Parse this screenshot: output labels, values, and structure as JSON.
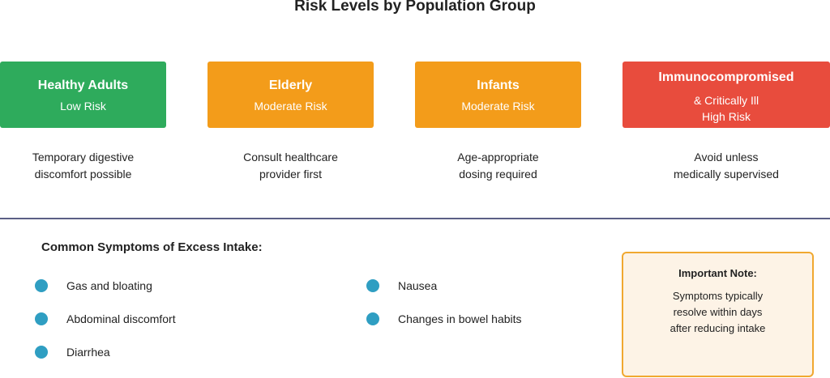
{
  "title": "Risk Levels by Population Group",
  "colors": {
    "low": "#2eab5c",
    "moderate": "#f39c1a",
    "high": "#e84c3d",
    "divider": "#5b5f86",
    "bullet": "#2f9ec2",
    "note_border": "#f0a830",
    "note_bg": "#fdf3e6"
  },
  "groups": [
    {
      "name": "Healthy Adults",
      "risk": "Low Risk",
      "desc1": "Temporary digestive",
      "desc2": "discomfort possible"
    },
    {
      "name": "Elderly",
      "risk": "Moderate Risk",
      "desc1": "Consult healthcare",
      "desc2": "provider first"
    },
    {
      "name": "Infants",
      "risk": "Moderate Risk",
      "desc1": "Age-appropriate",
      "desc2": "dosing required"
    },
    {
      "name": "Immunocompromised",
      "sub": "& Critically Ill",
      "risk": "High Risk",
      "desc1": "Avoid unless",
      "desc2": "medically supervised"
    }
  ],
  "symptoms": {
    "title": "Common Symptoms of Excess Intake:",
    "items": [
      "Gas and bloating",
      "Abdominal discomfort",
      "Diarrhea",
      "Nausea",
      "Changes in bowel habits"
    ]
  },
  "note": {
    "title": "Important Note:",
    "line1": "Symptoms typically",
    "line2": "resolve within days",
    "line3": "after reducing intake"
  }
}
